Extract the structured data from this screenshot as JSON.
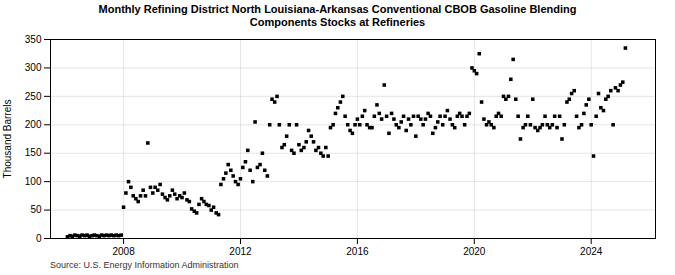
{
  "chart_data": {
    "type": "scatter",
    "title": "Monthly Refining District North Louisiana-Arkansas Conventional CBOB Gasoline Blending\nComponents Stocks at Refineries",
    "y_label": "Thousand Barrels",
    "caption": "Source: U.S. Energy Information Administration",
    "marker": "square",
    "grid": true,
    "xlim": [
      2005.5,
      2026.2
    ],
    "xticks": [
      2008,
      2012,
      2016,
      2020,
      2024
    ],
    "ylim": [
      0,
      350
    ],
    "yticks": [
      0,
      50,
      100,
      150,
      200,
      250,
      300,
      350
    ],
    "x": [
      2006.08,
      2006.17,
      2006.25,
      2006.33,
      2006.42,
      2006.5,
      2006.58,
      2006.67,
      2006.75,
      2006.83,
      2006.92,
      2007.0,
      2007.08,
      2007.17,
      2007.25,
      2007.33,
      2007.42,
      2007.5,
      2007.58,
      2007.67,
      2007.75,
      2007.83,
      2007.92,
      2008.0,
      2008.08,
      2008.17,
      2008.25,
      2008.33,
      2008.42,
      2008.5,
      2008.58,
      2008.67,
      2008.75,
      2008.83,
      2008.92,
      2009.0,
      2009.08,
      2009.17,
      2009.25,
      2009.33,
      2009.42,
      2009.5,
      2009.58,
      2009.67,
      2009.75,
      2009.83,
      2009.92,
      2010.0,
      2010.08,
      2010.17,
      2010.25,
      2010.33,
      2010.42,
      2010.5,
      2010.58,
      2010.67,
      2010.75,
      2010.83,
      2010.92,
      2011.0,
      2011.08,
      2011.17,
      2011.25,
      2011.33,
      2011.42,
      2011.5,
      2011.58,
      2011.67,
      2011.75,
      2011.83,
      2011.92,
      2012.0,
      2012.08,
      2012.17,
      2012.25,
      2012.33,
      2012.42,
      2012.5,
      2012.58,
      2012.67,
      2012.75,
      2012.83,
      2012.92,
      2013.0,
      2013.08,
      2013.17,
      2013.25,
      2013.33,
      2013.42,
      2013.5,
      2013.58,
      2013.67,
      2013.75,
      2013.83,
      2013.92,
      2014.0,
      2014.08,
      2014.17,
      2014.25,
      2014.33,
      2014.42,
      2014.5,
      2014.58,
      2014.67,
      2014.75,
      2014.83,
      2014.92,
      2015.0,
      2015.08,
      2015.17,
      2015.25,
      2015.33,
      2015.42,
      2015.5,
      2015.58,
      2015.67,
      2015.75,
      2015.83,
      2015.92,
      2016.0,
      2016.08,
      2016.17,
      2016.25,
      2016.33,
      2016.42,
      2016.5,
      2016.58,
      2016.67,
      2016.75,
      2016.83,
      2016.92,
      2017.0,
      2017.08,
      2017.17,
      2017.25,
      2017.33,
      2017.42,
      2017.5,
      2017.58,
      2017.67,
      2017.75,
      2017.83,
      2017.92,
      2018.0,
      2018.08,
      2018.17,
      2018.25,
      2018.33,
      2018.42,
      2018.5,
      2018.58,
      2018.67,
      2018.75,
      2018.83,
      2018.92,
      2019.0,
      2019.08,
      2019.17,
      2019.25,
      2019.33,
      2019.42,
      2019.5,
      2019.58,
      2019.67,
      2019.75,
      2019.83,
      2019.92,
      2020.0,
      2020.08,
      2020.17,
      2020.25,
      2020.33,
      2020.42,
      2020.5,
      2020.58,
      2020.67,
      2020.75,
      2020.83,
      2020.92,
      2021.0,
      2021.08,
      2021.17,
      2021.25,
      2021.33,
      2021.42,
      2021.5,
      2021.58,
      2021.67,
      2021.75,
      2021.83,
      2021.92,
      2022.0,
      2022.08,
      2022.17,
      2022.25,
      2022.33,
      2022.42,
      2022.5,
      2022.58,
      2022.67,
      2022.75,
      2022.83,
      2022.92,
      2023.0,
      2023.08,
      2023.17,
      2023.25,
      2023.33,
      2023.42,
      2023.5,
      2023.58,
      2023.67,
      2023.75,
      2023.83,
      2023.92,
      2024.0,
      2024.08,
      2024.17,
      2024.25,
      2024.33,
      2024.42,
      2024.5,
      2024.58,
      2024.67,
      2024.75,
      2024.83,
      2024.92,
      2025.0,
      2025.08,
      2025.17
    ],
    "values": [
      3,
      5,
      4,
      6,
      5,
      4,
      6,
      5,
      6,
      4,
      5,
      6,
      5,
      4,
      6,
      5,
      6,
      5,
      6,
      5,
      6,
      5,
      6,
      55,
      80,
      100,
      90,
      75,
      70,
      65,
      75,
      85,
      75,
      168,
      90,
      80,
      90,
      85,
      95,
      78,
      72,
      68,
      75,
      85,
      78,
      70,
      75,
      72,
      80,
      68,
      65,
      52,
      48,
      45,
      60,
      70,
      65,
      60,
      58,
      50,
      55,
      45,
      42,
      95,
      105,
      115,
      130,
      120,
      110,
      100,
      95,
      105,
      125,
      135,
      155,
      120,
      100,
      205,
      125,
      130,
      150,
      120,
      110,
      200,
      245,
      240,
      250,
      200,
      160,
      165,
      180,
      200,
      155,
      150,
      200,
      165,
      155,
      160,
      170,
      190,
      180,
      170,
      155,
      160,
      150,
      145,
      160,
      145,
      195,
      200,
      220,
      230,
      240,
      250,
      215,
      200,
      190,
      185,
      200,
      210,
      200,
      215,
      225,
      200,
      195,
      195,
      215,
      235,
      220,
      210,
      270,
      215,
      185,
      220,
      210,
      200,
      195,
      205,
      215,
      190,
      210,
      200,
      215,
      180,
      215,
      210,
      200,
      210,
      220,
      215,
      185,
      195,
      205,
      215,
      200,
      215,
      225,
      210,
      200,
      195,
      215,
      220,
      215,
      200,
      215,
      220,
      300,
      295,
      290,
      325,
      240,
      210,
      200,
      205,
      200,
      195,
      215,
      220,
      215,
      250,
      245,
      250,
      280,
      315,
      245,
      215,
      175,
      195,
      200,
      215,
      200,
      245,
      195,
      190,
      195,
      200,
      215,
      200,
      195,
      200,
      215,
      195,
      215,
      175,
      200,
      240,
      245,
      255,
      260,
      215,
      195,
      200,
      220,
      235,
      245,
      200,
      145,
      215,
      255,
      230,
      225,
      245,
      250,
      260,
      200,
      265,
      260,
      270,
      275,
      335
    ]
  }
}
